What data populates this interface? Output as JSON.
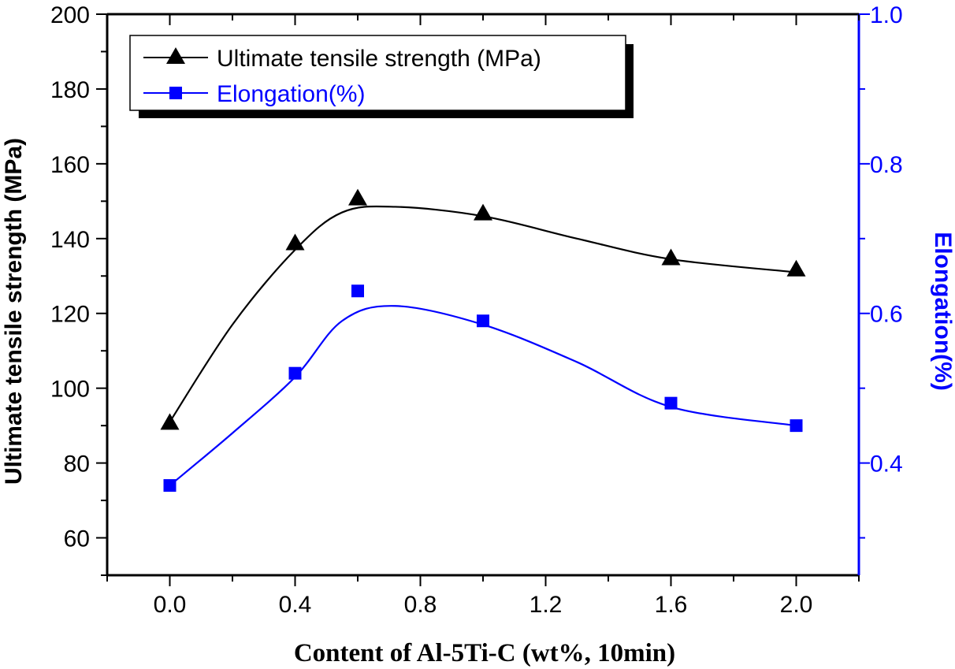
{
  "chart_data": {
    "type": "line",
    "xlabel": "Content of Al-5Ti-C (wt%, 10min)",
    "ylabel": "Ultimate tensile strength (MPa)",
    "y2label": "Elongation(%)",
    "xlim": [
      -0.2,
      2.2
    ],
    "ylim": [
      50,
      200
    ],
    "y2lim": [
      0.25,
      1.0
    ],
    "x_ticks": [
      "0.0",
      "0.4",
      "0.8",
      "1.2",
      "1.6",
      "2.0"
    ],
    "y_ticks": [
      "60",
      "80",
      "100",
      "120",
      "140",
      "160",
      "180",
      "200"
    ],
    "y2_ticks": [
      "0.4",
      "0.6",
      "0.8",
      "1.0"
    ],
    "series": [
      {
        "name": "Ultimate tensile strength (MPa)",
        "axis": "left",
        "marker": "triangle",
        "color": "#000000",
        "x": [
          0.0,
          0.4,
          0.6,
          1.0,
          1.6,
          2.0
        ],
        "values": [
          91,
          139,
          151,
          147,
          135,
          132
        ]
      },
      {
        "name": "Elongation(%)",
        "axis": "right",
        "marker": "square",
        "color": "#0000ff",
        "x": [
          0.0,
          0.4,
          0.6,
          1.0,
          1.6,
          2.0
        ],
        "values": [
          0.37,
          0.52,
          0.63,
          0.59,
          0.48,
          0.45
        ]
      }
    ],
    "legend": {
      "position": "top-left",
      "entries": [
        "Ultimate tensile strength (MPa)",
        "Elongation(%)"
      ]
    },
    "fit_curves": [
      {
        "series": "Ultimate tensile strength (MPa)",
        "color": "#000000",
        "points": [
          [
            0.0,
            91
          ],
          [
            0.2,
            117
          ],
          [
            0.4,
            137
          ],
          [
            0.55,
            147
          ],
          [
            0.72,
            148.5
          ],
          [
            1.0,
            146
          ],
          [
            1.3,
            140
          ],
          [
            1.6,
            134.5
          ],
          [
            2.0,
            131
          ]
        ]
      },
      {
        "series": "Elongation(%)",
        "color": "#0000ff",
        "points": [
          [
            0.0,
            0.37
          ],
          [
            0.2,
            0.44
          ],
          [
            0.4,
            0.515
          ],
          [
            0.55,
            0.59
          ],
          [
            0.72,
            0.61
          ],
          [
            1.0,
            0.585
          ],
          [
            1.3,
            0.535
          ],
          [
            1.6,
            0.475
          ],
          [
            2.0,
            0.45
          ]
        ]
      }
    ]
  }
}
